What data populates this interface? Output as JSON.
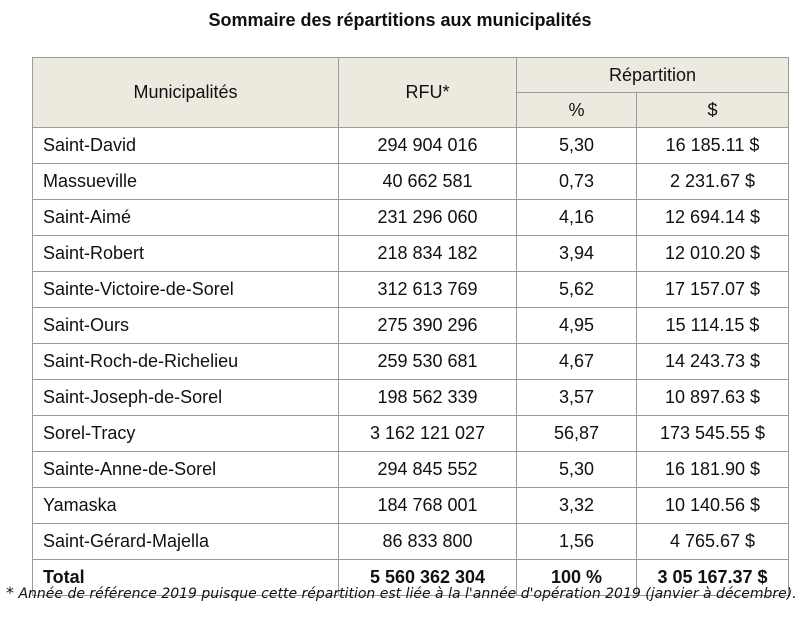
{
  "title": "Sommaire des répartitions aux municipalités",
  "table": {
    "headers": {
      "municipality": "Municipalités",
      "rfu": "RFU*",
      "repartition": "Répartition",
      "percent": "%",
      "dollars": "$"
    },
    "rows": [
      {
        "name": "Saint-David",
        "rfu": "294 904 016",
        "pct": "5,30",
        "amount": "16 185.11 $"
      },
      {
        "name": "Massueville",
        "rfu": "40 662 581",
        "pct": "0,73",
        "amount": "2 231.67 $"
      },
      {
        "name": "Saint-Aimé",
        "rfu": "231 296 060",
        "pct": "4,16",
        "amount": "12 694.14 $"
      },
      {
        "name": "Saint-Robert",
        "rfu": "218 834 182",
        "pct": "3,94",
        "amount": "12 010.20 $"
      },
      {
        "name": "Sainte-Victoire-de-Sorel",
        "rfu": "312 613 769",
        "pct": "5,62",
        "amount": "17 157.07 $"
      },
      {
        "name": "Saint-Ours",
        "rfu": "275 390 296",
        "pct": "4,95",
        "amount": "15 114.15 $"
      },
      {
        "name": "Saint-Roch-de-Richelieu",
        "rfu": "259 530 681",
        "pct": "4,67",
        "amount": "14 243.73 $"
      },
      {
        "name": "Saint-Joseph-de-Sorel",
        "rfu": "198 562 339",
        "pct": "3,57",
        "amount": "10 897.63 $"
      },
      {
        "name": "Sorel-Tracy",
        "rfu": "3 162 121 027",
        "pct": "56,87",
        "amount": "173 545.55 $"
      },
      {
        "name": "Sainte-Anne-de-Sorel",
        "rfu": "294 845 552",
        "pct": "5,30",
        "amount": "16 181.90 $"
      },
      {
        "name": "Yamaska",
        "rfu": "184 768 001",
        "pct": "3,32",
        "amount": "10 140.56 $"
      },
      {
        "name": "Saint-Gérard-Majella",
        "rfu": "86 833 800",
        "pct": "1,56",
        "amount": "4 765.67 $"
      }
    ],
    "total": {
      "name": "Total",
      "rfu": "5 560 362 304",
      "pct": "100 %",
      "amount": "3 05 167.37 $"
    }
  },
  "footnote": {
    "marker": "*",
    "text": "Année de référence 2019 puisque cette répartition est liée à la l'année d'opération 2019 (janvier à décembre)."
  }
}
